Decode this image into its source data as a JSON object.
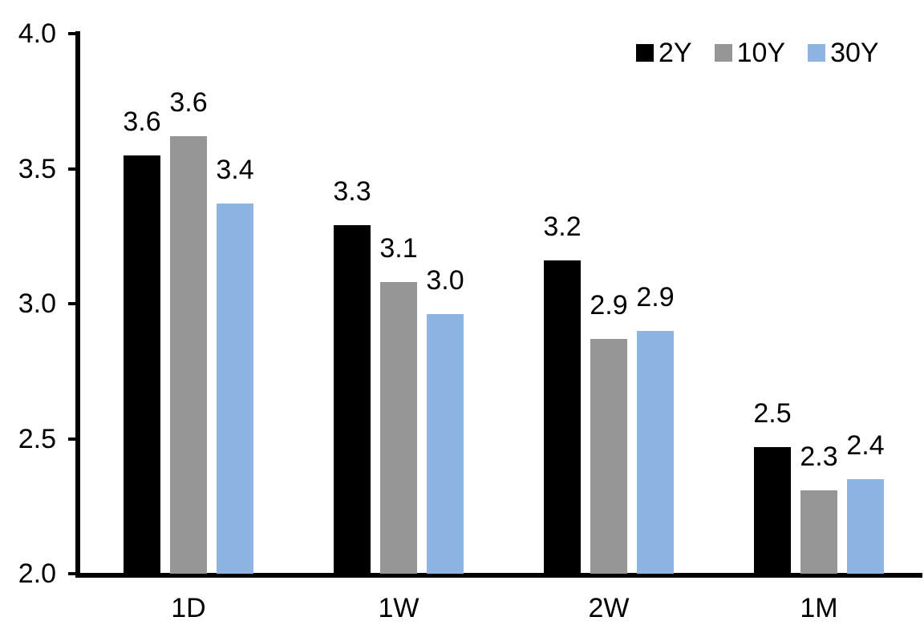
{
  "chart_data": {
    "type": "bar",
    "title": "",
    "xlabel": "",
    "ylabel": "",
    "grid": false,
    "background": "#FFFFFF",
    "axis_color": "#000000",
    "legend_position": "top-right",
    "categories": [
      "1D",
      "1W",
      "2W",
      "1M"
    ],
    "series": [
      {
        "name": "2Y",
        "color": "#000000",
        "values": [
          3.55,
          3.29,
          3.16,
          2.47
        ],
        "data_labels": [
          "3.6",
          "3.3",
          "3.2",
          "2.5"
        ]
      },
      {
        "name": "10Y",
        "color": "#969696",
        "values": [
          3.62,
          3.08,
          2.87,
          2.31
        ],
        "data_labels": [
          "3.6",
          "3.1",
          "2.9",
          "2.3"
        ]
      },
      {
        "name": "30Y",
        "color": "#8DB4E2",
        "values": [
          3.37,
          2.96,
          2.9,
          2.35
        ],
        "data_labels": [
          "3.4",
          "3.0",
          "2.9",
          "2.4"
        ]
      }
    ],
    "ylim": [
      2.0,
      4.0
    ],
    "yticks": [
      {
        "value": 2.0,
        "label": "2.0"
      },
      {
        "value": 2.5,
        "label": "2.5"
      },
      {
        "value": 3.0,
        "label": "3.0"
      },
      {
        "value": 3.5,
        "label": "3.5"
      },
      {
        "value": 4.0,
        "label": "4.0"
      }
    ]
  }
}
